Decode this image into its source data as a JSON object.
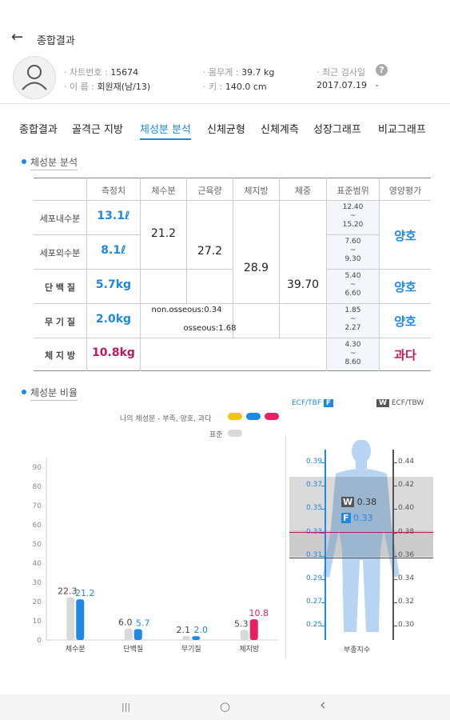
{
  "app": {
    "back_icon": "arrow-left-icon",
    "title": "종합결과"
  },
  "profile": {
    "chart_no_label": "· 차트번호 :",
    "chart_no": "15674",
    "name_label": "· 이      름 :",
    "name": "회원재(남/13)",
    "weight_label": "· 몸무게 :",
    "weight": "39.7 kg",
    "height_label": "· 키 :",
    "height": "140.0 cm",
    "recent_label": "· 최근 검사일",
    "recent_date": "2017.07.19",
    "recent_dash": "-"
  },
  "tabs": [
    "종합결과",
    "골격근 지방",
    "체성분 분석",
    "신체균형",
    "신체계측",
    "성장그래프",
    "비교그래프"
  ],
  "active_tab": 2,
  "analysis": {
    "title": "체성분 분석",
    "headers": [
      "측정치",
      "체수분",
      "근육량",
      "체지방",
      "체중",
      "표준범위",
      "영양평가"
    ],
    "rows": [
      {
        "label": "세포내수분",
        "value": "13.1ℓ",
        "range_lo": "12.40",
        "range_hi": "15.20"
      },
      {
        "label": "세포외수분",
        "value": "8.1ℓ",
        "range_lo": "7.60",
        "range_hi": "9.30"
      },
      {
        "label": "단 백 질",
        "value": "5.7kg",
        "range_lo": "5.40",
        "range_hi": "6.60"
      },
      {
        "label": "무 기 질",
        "value": "2.0kg",
        "range_lo": "1.85",
        "range_hi": "2.27"
      },
      {
        "label": "체 지 방",
        "value": "10.8kg",
        "range_lo": "4.30",
        "range_hi": "8.60"
      }
    ],
    "range_sep": "~",
    "body_water": "21.2",
    "muscle": "27.2",
    "body_fat": "28.9",
    "weight": "39.70",
    "non_osseous": "non.osseous:0.34",
    "osseous": "osseous:1.68",
    "grades": [
      "양호",
      "양호",
      "양호",
      "과다"
    ]
  },
  "ratio": {
    "title": "체성분 비율",
    "legend_mine": "나의 체성분 - 부족, 양호, 과다",
    "legend_std": "표준",
    "colors": {
      "low": "#f1c40f",
      "ok": "#1e88e5",
      "over": "#e91e63",
      "std": "#d9d9d9"
    }
  },
  "ecf": {
    "left_label": "ECF/TBF",
    "left_badge": "F",
    "right_badge": "W",
    "right_label": "ECF/TBW",
    "left_ticks": [
      "0.39",
      "0.37",
      "0.35",
      "0.33",
      "0.31",
      "0.29",
      "0.27",
      "0.25"
    ],
    "right_ticks": [
      "0.44",
      "0.42",
      "0.40",
      "0.38",
      "0.36",
      "0.34",
      "0.32",
      "0.30"
    ],
    "w_value": "0.38",
    "f_value": "0.33",
    "xlabel": "부종지수"
  },
  "chart_data": {
    "type": "bar",
    "categories": [
      "체수분",
      "단백질",
      "무기질",
      "체지방"
    ],
    "yticks": [
      0,
      10,
      20,
      30,
      40,
      50,
      60,
      70,
      80,
      90
    ],
    "ylim": [
      0,
      95
    ],
    "series": [
      {
        "name": "표준",
        "values": [
          22.3,
          6.0,
          2.1,
          5.3
        ],
        "labels": [
          "22.3",
          "6.0",
          "2.1",
          "5.3"
        ],
        "color": "#d9d9d9"
      },
      {
        "name": "나의 체성분",
        "values": [
          21.2,
          5.7,
          2.0,
          10.8
        ],
        "labels": [
          "21.2",
          "5.7",
          "2.0",
          "10.8"
        ],
        "colors": [
          "#1e88e5",
          "#1e88e5",
          "#1e88e5",
          "#e91e63"
        ]
      }
    ]
  },
  "nav": {
    "recent": "|||",
    "home": "○",
    "back": "‹"
  }
}
